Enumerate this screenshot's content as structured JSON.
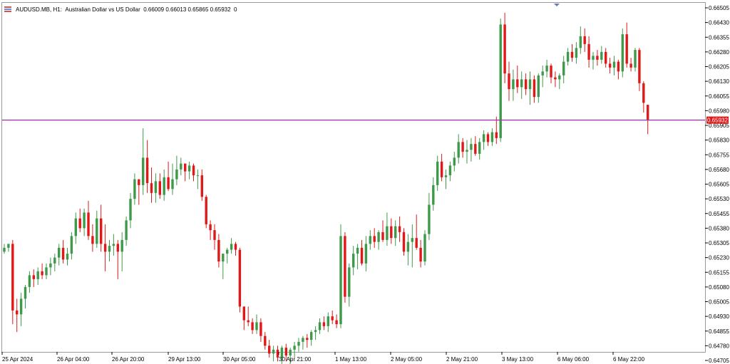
{
  "header": {
    "symbol": "AUDUSD.MB,",
    "timeframe": "H1:",
    "description": "Australian Dollar vs US Dollar",
    "ohlc": "0.66009 0.66013 0.65865 0.65932",
    "volume": "0"
  },
  "colors": {
    "bull": "#3e9a4a",
    "bear": "#e01818",
    "line": "#9c3aa6",
    "tag": "#e01818"
  },
  "chart_data": {
    "type": "candlestick",
    "title": "AUDUSD.MB, H1: Australian Dollar vs US Dollar",
    "ylim": [
      0.6465,
      0.6651
    ],
    "current_price": "0.65932",
    "y_ticks": [
      "0.66505",
      "0.66430",
      "0.66355",
      "0.66280",
      "0.66205",
      "0.66130",
      "0.66055",
      "0.65980",
      "0.65905",
      "0.65830",
      "0.65755",
      "0.65680",
      "0.65605",
      "0.65530",
      "0.65455",
      "0.65380",
      "0.65305",
      "0.65230",
      "0.65155",
      "0.65080",
      "0.65005",
      "0.64930",
      "0.64855",
      "0.64780",
      "0.64705"
    ],
    "x_ticks": [
      "25 Apr 2024",
      "26 Apr 04:00",
      "26 Apr 20:00",
      "29 Apr 13:00",
      "30 Apr 05:00",
      "30 Apr 21:00",
      "1 May 13:00",
      "2 May 05:00",
      "2 May 21:00",
      "3 May 13:00",
      "6 May 06:00",
      "6 May 22:00"
    ],
    "series": [
      {
        "ohlc": [
          [
            0.6526,
            0.653,
            0.6525,
            0.6528
          ],
          [
            0.6528,
            0.653,
            0.6526,
            0.653
          ],
          [
            0.653,
            0.6532,
            0.6489,
            0.6496
          ],
          [
            0.6496,
            0.6502,
            0.6485,
            0.6494
          ],
          [
            0.6494,
            0.6505,
            0.6488,
            0.6502
          ],
          [
            0.6502,
            0.6509,
            0.6497,
            0.6508
          ],
          [
            0.6508,
            0.6516,
            0.6505,
            0.6514
          ],
          [
            0.6514,
            0.6517,
            0.6508,
            0.6512
          ],
          [
            0.6512,
            0.6518,
            0.6509,
            0.6516
          ],
          [
            0.6516,
            0.652,
            0.6512,
            0.6514
          ],
          [
            0.6514,
            0.652,
            0.6512,
            0.6518
          ],
          [
            0.6518,
            0.6523,
            0.6514,
            0.652
          ],
          [
            0.652,
            0.6525,
            0.6516,
            0.6523
          ],
          [
            0.6523,
            0.653,
            0.6519,
            0.6528
          ],
          [
            0.6528,
            0.6532,
            0.652,
            0.6522
          ],
          [
            0.6522,
            0.6528,
            0.6519,
            0.6525
          ],
          [
            0.6525,
            0.6536,
            0.6522,
            0.6534
          ],
          [
            0.6534,
            0.6546,
            0.653,
            0.6543
          ],
          [
            0.6543,
            0.6548,
            0.6536,
            0.6538
          ],
          [
            0.6538,
            0.6548,
            0.6534,
            0.6546
          ],
          [
            0.6546,
            0.6552,
            0.6532,
            0.6534
          ],
          [
            0.6534,
            0.654,
            0.6526,
            0.653
          ],
          [
            0.653,
            0.6547,
            0.6528,
            0.6543
          ],
          [
            0.6543,
            0.655,
            0.6526,
            0.653
          ],
          [
            0.653,
            0.654,
            0.6516,
            0.6526
          ],
          [
            0.6526,
            0.6532,
            0.6521,
            0.6529
          ],
          [
            0.6529,
            0.6535,
            0.6524,
            0.653
          ],
          [
            0.653,
            0.6532,
            0.6512,
            0.6526
          ],
          [
            0.6526,
            0.6536,
            0.6516,
            0.6532
          ],
          [
            0.6532,
            0.6544,
            0.6529,
            0.6542
          ],
          [
            0.6542,
            0.6556,
            0.6538,
            0.6553
          ],
          [
            0.6553,
            0.6566,
            0.655,
            0.6563
          ],
          [
            0.6563,
            0.6563,
            0.655,
            0.656
          ],
          [
            0.656,
            0.6589,
            0.6555,
            0.6574
          ],
          [
            0.6574,
            0.6583,
            0.6556,
            0.6561
          ],
          [
            0.6561,
            0.6569,
            0.6551,
            0.6556
          ],
          [
            0.6556,
            0.6566,
            0.6551,
            0.6562
          ],
          [
            0.6562,
            0.6566,
            0.6553,
            0.6555
          ],
          [
            0.6555,
            0.6568,
            0.6552,
            0.6564
          ],
          [
            0.6564,
            0.6572,
            0.6557,
            0.6558
          ],
          [
            0.6558,
            0.6571,
            0.6555,
            0.6563
          ],
          [
            0.6563,
            0.6575,
            0.656,
            0.6568
          ],
          [
            0.6568,
            0.6574,
            0.6565,
            0.6571
          ],
          [
            0.6571,
            0.6571,
            0.6562,
            0.6567
          ],
          [
            0.6567,
            0.6572,
            0.6563,
            0.657
          ],
          [
            0.657,
            0.6571,
            0.6562,
            0.6565
          ],
          [
            0.6565,
            0.6568,
            0.6558,
            0.6565
          ],
          [
            0.6565,
            0.6568,
            0.6552,
            0.6554
          ],
          [
            0.6554,
            0.6555,
            0.6538,
            0.654
          ],
          [
            0.654,
            0.6542,
            0.6532,
            0.6537
          ],
          [
            0.6537,
            0.654,
            0.6527,
            0.6532
          ],
          [
            0.6532,
            0.6535,
            0.6518,
            0.6521
          ],
          [
            0.6521,
            0.6525,
            0.6512,
            0.6525
          ],
          [
            0.6525,
            0.6528,
            0.652,
            0.6527
          ],
          [
            0.6527,
            0.6533,
            0.6525,
            0.653
          ],
          [
            0.653,
            0.6531,
            0.6524,
            0.6527
          ],
          [
            0.6527,
            0.6528,
            0.6495,
            0.6498
          ],
          [
            0.6498,
            0.6498,
            0.6486,
            0.6491
          ],
          [
            0.6491,
            0.6498,
            0.6488,
            0.649
          ],
          [
            0.649,
            0.6492,
            0.6484,
            0.6486
          ],
          [
            0.6486,
            0.6494,
            0.6484,
            0.649
          ],
          [
            0.649,
            0.6492,
            0.648,
            0.6483
          ],
          [
            0.6483,
            0.6485,
            0.6476,
            0.6478
          ],
          [
            0.6478,
            0.6481,
            0.6472,
            0.6474
          ],
          [
            0.6474,
            0.6478,
            0.647,
            0.6476
          ],
          [
            0.6476,
            0.6478,
            0.647,
            0.6472
          ],
          [
            0.6472,
            0.6478,
            0.6467,
            0.6477
          ],
          [
            0.6477,
            0.6479,
            0.647,
            0.6473
          ],
          [
            0.6473,
            0.6477,
            0.6467,
            0.6476
          ],
          [
            0.6476,
            0.648,
            0.6472,
            0.6478
          ],
          [
            0.6478,
            0.6482,
            0.6475,
            0.648
          ],
          [
            0.648,
            0.6483,
            0.6476,
            0.6482
          ],
          [
            0.6482,
            0.6484,
            0.6477,
            0.6481
          ],
          [
            0.6481,
            0.6486,
            0.6478,
            0.6485
          ],
          [
            0.6485,
            0.6488,
            0.6481,
            0.6486
          ],
          [
            0.6486,
            0.6492,
            0.6484,
            0.649
          ],
          [
            0.649,
            0.6493,
            0.6486,
            0.6488
          ],
          [
            0.6488,
            0.6495,
            0.6485,
            0.6493
          ],
          [
            0.6493,
            0.6496,
            0.6489,
            0.6491
          ],
          [
            0.6491,
            0.6494,
            0.6487,
            0.6489
          ],
          [
            0.6489,
            0.654,
            0.6487,
            0.6534
          ],
          [
            0.6534,
            0.6536,
            0.65,
            0.6503
          ],
          [
            0.6503,
            0.652,
            0.6498,
            0.6518
          ],
          [
            0.6518,
            0.6529,
            0.6514,
            0.6525
          ],
          [
            0.6525,
            0.653,
            0.6517,
            0.6528
          ],
          [
            0.6528,
            0.6532,
            0.6519,
            0.652
          ],
          [
            0.652,
            0.6534,
            0.6516,
            0.653
          ],
          [
            0.653,
            0.6537,
            0.6527,
            0.6534
          ],
          [
            0.6534,
            0.6538,
            0.6528,
            0.6531
          ],
          [
            0.6531,
            0.6537,
            0.6527,
            0.6536
          ],
          [
            0.6536,
            0.6542,
            0.6531,
            0.6532
          ],
          [
            0.6532,
            0.6546,
            0.6529,
            0.6539
          ],
          [
            0.6539,
            0.6543,
            0.653,
            0.6533
          ],
          [
            0.6533,
            0.6542,
            0.6529,
            0.6539
          ],
          [
            0.6539,
            0.6544,
            0.6531,
            0.6536
          ],
          [
            0.6536,
            0.6538,
            0.6524,
            0.6526
          ],
          [
            0.6526,
            0.6535,
            0.6519,
            0.6531
          ],
          [
            0.6531,
            0.654,
            0.6518,
            0.6533
          ],
          [
            0.6533,
            0.6545,
            0.6527,
            0.6528
          ],
          [
            0.6528,
            0.6532,
            0.6518,
            0.6521
          ],
          [
            0.6521,
            0.6537,
            0.6519,
            0.6535
          ],
          [
            0.6535,
            0.6556,
            0.6532,
            0.655
          ],
          [
            0.655,
            0.6564,
            0.6547,
            0.656
          ],
          [
            0.656,
            0.6575,
            0.6557,
            0.6572
          ],
          [
            0.6572,
            0.6576,
            0.6562,
            0.6564
          ],
          [
            0.6564,
            0.6568,
            0.6558,
            0.6565
          ],
          [
            0.6565,
            0.6572,
            0.6562,
            0.657
          ],
          [
            0.657,
            0.6577,
            0.6567,
            0.6574
          ],
          [
            0.6574,
            0.6586,
            0.6571,
            0.6582
          ],
          [
            0.6582,
            0.6584,
            0.6574,
            0.6577
          ],
          [
            0.6577,
            0.6583,
            0.6571,
            0.6578
          ],
          [
            0.6578,
            0.6584,
            0.6572,
            0.6581
          ],
          [
            0.6581,
            0.6585,
            0.6575,
            0.6576
          ],
          [
            0.6576,
            0.6584,
            0.6573,
            0.6582
          ],
          [
            0.6582,
            0.6588,
            0.6578,
            0.6586
          ],
          [
            0.6586,
            0.6587,
            0.658,
            0.6582
          ],
          [
            0.6582,
            0.6589,
            0.658,
            0.6587
          ],
          [
            0.6587,
            0.6595,
            0.6581,
            0.6584
          ],
          [
            0.6584,
            0.6645,
            0.6582,
            0.6642
          ],
          [
            0.6642,
            0.6648,
            0.6612,
            0.6617
          ],
          [
            0.6617,
            0.6623,
            0.6603,
            0.6609
          ],
          [
            0.6609,
            0.6619,
            0.6603,
            0.6614
          ],
          [
            0.6614,
            0.6621,
            0.6607,
            0.661
          ],
          [
            0.661,
            0.6618,
            0.6604,
            0.6614
          ],
          [
            0.6614,
            0.6617,
            0.6606,
            0.6609
          ],
          [
            0.6609,
            0.6618,
            0.6601,
            0.6614
          ],
          [
            0.6614,
            0.6616,
            0.6602,
            0.6605
          ],
          [
            0.6605,
            0.6617,
            0.6602,
            0.6616
          ],
          [
            0.6616,
            0.6621,
            0.661,
            0.6618
          ],
          [
            0.6618,
            0.6624,
            0.6615,
            0.6621
          ],
          [
            0.6621,
            0.6622,
            0.6612,
            0.6615
          ],
          [
            0.6615,
            0.6618,
            0.661,
            0.6614
          ],
          [
            0.6614,
            0.6617,
            0.6609,
            0.6616
          ],
          [
            0.6616,
            0.6626,
            0.6612,
            0.6623
          ],
          [
            0.6623,
            0.663,
            0.6621,
            0.6628
          ],
          [
            0.6628,
            0.6632,
            0.6623,
            0.6625
          ],
          [
            0.6625,
            0.6633,
            0.6622,
            0.663
          ],
          [
            0.663,
            0.6641,
            0.6627,
            0.6636
          ],
          [
            0.6636,
            0.664,
            0.6628,
            0.6632
          ],
          [
            0.6632,
            0.6636,
            0.662,
            0.6624
          ],
          [
            0.6624,
            0.6628,
            0.6619,
            0.6626
          ],
          [
            0.6626,
            0.6629,
            0.6621,
            0.6624
          ],
          [
            0.6624,
            0.6631,
            0.6622,
            0.6628
          ],
          [
            0.6628,
            0.663,
            0.662,
            0.6622
          ],
          [
            0.6622,
            0.6625,
            0.6617,
            0.662
          ],
          [
            0.662,
            0.6626,
            0.6616,
            0.6623
          ],
          [
            0.6623,
            0.6624,
            0.6614,
            0.6618
          ],
          [
            0.6618,
            0.664,
            0.6615,
            0.6637
          ],
          [
            0.6637,
            0.6643,
            0.662,
            0.6622
          ],
          [
            0.6622,
            0.6625,
            0.6618,
            0.662
          ],
          [
            0.662,
            0.663,
            0.6618,
            0.6629
          ],
          [
            0.6629,
            0.663,
            0.6608,
            0.6612
          ],
          [
            0.6612,
            0.6613,
            0.6597,
            0.6602
          ],
          [
            0.6601,
            0.6601,
            0.6586,
            0.6593
          ]
        ]
      }
    ]
  }
}
